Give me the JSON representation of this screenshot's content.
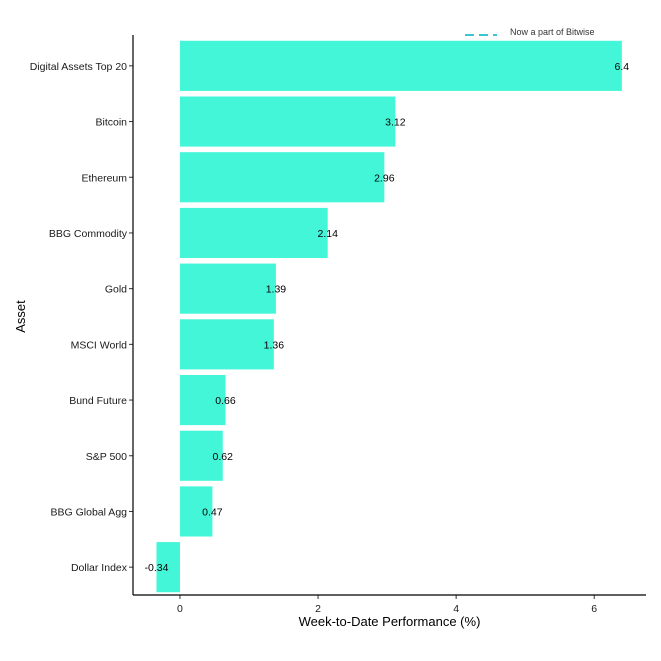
{
  "chart_data": {
    "type": "bar",
    "orientation": "horizontal",
    "categories": [
      "Digital Assets Top 20",
      "Bitcoin",
      "Ethereum",
      "BBG Commodity",
      "Gold",
      "MSCI World",
      "Bund Future",
      "S&P 500",
      "BBG Global Agg",
      "Dollar Index"
    ],
    "values": [
      6.4,
      3.12,
      2.96,
      2.14,
      1.39,
      1.36,
      0.66,
      0.62,
      0.47,
      -0.34
    ],
    "data_labels": [
      "6.4",
      "3.12",
      "2.96",
      "2.14",
      "1.39",
      "1.36",
      "0.66",
      "0.62",
      "0.47",
      "-0.34"
    ],
    "xlabel": "Week-to-Date Performance (%)",
    "ylabel": "Asset",
    "xlim": [
      -0.68,
      6.75
    ],
    "xticks": [
      0,
      2,
      4,
      6
    ],
    "xtick_labels": [
      "0",
      "2",
      "4",
      "6"
    ],
    "grid": false,
    "legend": {
      "placement": "top-right",
      "text": "Now a part of Bitwise",
      "line_color": "#3bc4d4",
      "line_style": "dashed"
    },
    "colors": {
      "bar": "#44f6d8",
      "axis": "#000000",
      "text": "#000000"
    }
  }
}
